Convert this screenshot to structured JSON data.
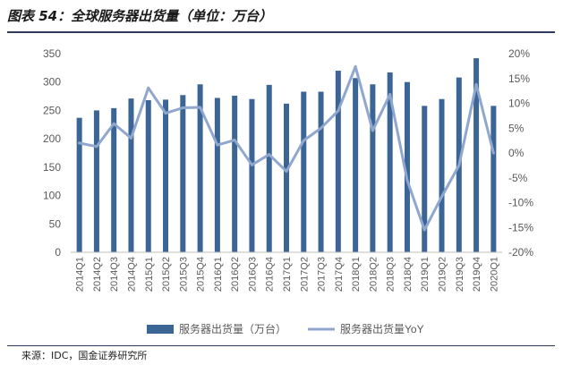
{
  "title": "图表 54：全球服务器出货量（单位：万台）",
  "source": "来源：IDC，国金证券研究所",
  "colors": {
    "bar": "#3a6595",
    "line": "#8fa7cf",
    "axis_text": "#595959",
    "gridline": "#d9d9d9"
  },
  "chart_data": {
    "type": "bar",
    "categories": [
      "2014Q1",
      "2014Q2",
      "2014Q3",
      "2014Q4",
      "2015Q1",
      "2015Q2",
      "2015Q3",
      "2015Q4",
      "2016Q1",
      "2016Q2",
      "2016Q3",
      "2016Q4",
      "2017Q1",
      "2017Q2",
      "2017Q3",
      "2017Q4",
      "2018Q1",
      "2018Q2",
      "2018Q3",
      "2018Q4",
      "2019Q1",
      "2019Q2",
      "2019Q3",
      "2019Q4",
      "2020Q1"
    ],
    "series": [
      {
        "name": "服务器出货量（万台）",
        "type": "bar",
        "axis": "left",
        "values": [
          237,
          250,
          254,
          271,
          268,
          269,
          277,
          296,
          272,
          276,
          270,
          295,
          262,
          283,
          283,
          320,
          307,
          296,
          317,
          300,
          258,
          270,
          308,
          342,
          258
        ]
      },
      {
        "name": "服务器出货量YoY",
        "type": "line",
        "axis": "right",
        "values": [
          2.0,
          1.3,
          5.9,
          3.0,
          13.1,
          8.0,
          9.1,
          9.2,
          1.6,
          2.6,
          -2.4,
          -0.3,
          -3.7,
          2.5,
          5.0,
          8.5,
          17.4,
          4.5,
          11.8,
          -5.5,
          -15.5,
          -8.8,
          -2.5,
          13.8,
          0.0
        ]
      }
    ],
    "yaxis_left": {
      "min": 0,
      "max": 350,
      "ticks": [
        "0",
        "50",
        "100",
        "150",
        "200",
        "250",
        "300",
        "350"
      ]
    },
    "yaxis_right": {
      "min": -20,
      "max": 20,
      "ticks": [
        "-20%",
        "-15%",
        "-10%",
        "-5%",
        "0%",
        "5%",
        "10%",
        "15%",
        "20%"
      ]
    },
    "grid": false,
    "legend_position": "bottom"
  }
}
